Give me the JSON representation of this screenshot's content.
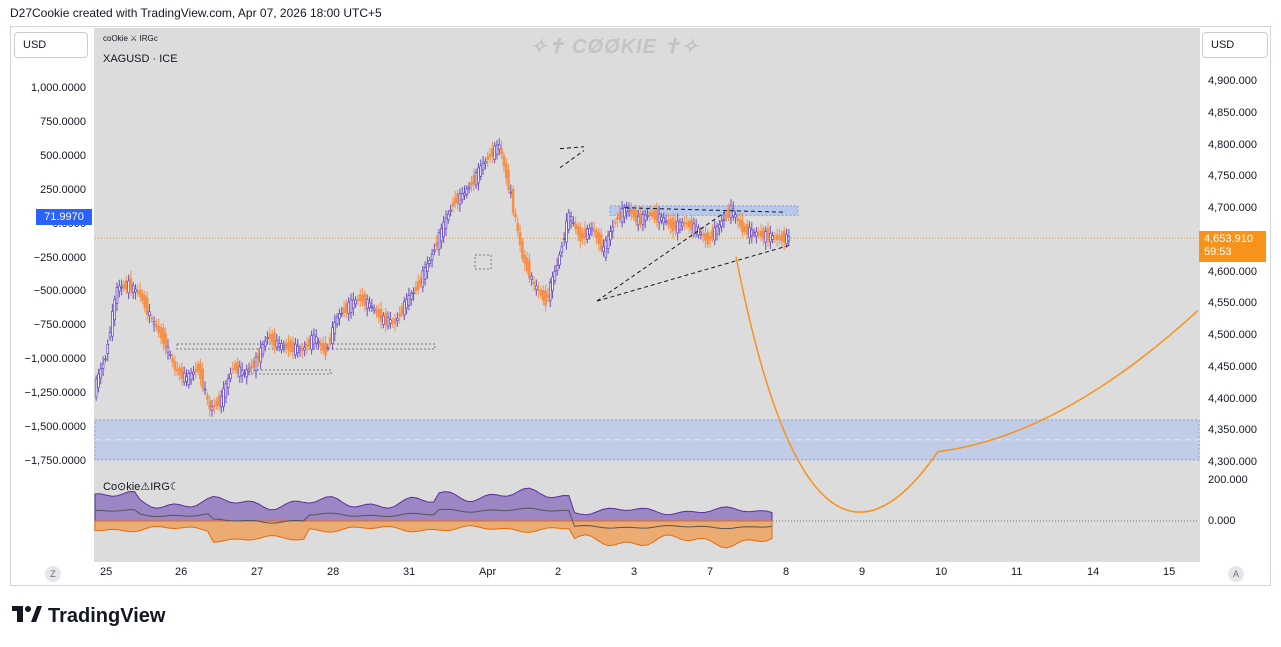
{
  "header": {
    "credit": "D27Cookie created with TradingView.com, Apr 07, 2026 18:00 UTC+5"
  },
  "controls": {
    "currency_left": "USD",
    "currency_right": "USD",
    "left_circle": "Z",
    "right_circle": "A"
  },
  "symbol": {
    "indicator_short": "coOkie ⚔ IRGc",
    "name": "XAGUSD · ICE"
  },
  "watermark": "✧✝ CØØKIE ✝✧",
  "brand": {
    "name": "TradingView"
  },
  "colors": {
    "bull": "#6d4fc4",
    "bear": "#f5914a",
    "accent": "#2962ff",
    "price_tag": "#f7931a",
    "zone": "#b8c8ea"
  },
  "chart_data": {
    "type": "line",
    "title": "XAGUSD · ICE",
    "right_axis": {
      "ticks": [
        "4,900.000",
        "4,850.000",
        "4,800.000",
        "4,750.000",
        "4,700.000",
        "4,650.000",
        "4,600.000",
        "4,550.000",
        "4,500.000",
        "4,450.000",
        "4,400.000",
        "4,350.000",
        "4,300.000"
      ],
      "ylim": [
        4290,
        4920
      ],
      "current_price": "4,653.910",
      "countdown": "59:53"
    },
    "left_axis": {
      "ticks": [
        "1,000.0000",
        "750.0000",
        "500.0000",
        "250.0000",
        "0.0000",
        "−250.0000",
        "−500.0000",
        "−750.0000",
        "−1,000.0000",
        "−1,250.0000",
        "−1,500.0000",
        "−1,750.0000"
      ],
      "ylim": [
        -1820,
        1080
      ],
      "current_value": "71.9970"
    },
    "x_axis": {
      "ticks": [
        "25",
        "26",
        "27",
        "28",
        "31",
        "Apr",
        "2",
        "3",
        "7",
        "8",
        "9",
        "10",
        "11",
        "14",
        "15"
      ]
    },
    "series": [
      {
        "x": [
          0,
          2,
          4,
          6,
          8,
          10,
          12,
          14,
          16,
          18,
          20,
          22,
          24,
          26,
          28,
          30,
          32,
          34,
          36,
          38,
          40,
          42,
          44,
          46,
          48,
          50,
          52,
          54,
          56,
          58,
          60,
          62,
          64,
          66,
          68,
          70,
          72,
          74,
          76,
          78,
          80,
          82,
          84,
          86,
          88,
          90,
          92,
          94,
          96,
          98,
          100,
          102,
          104,
          106,
          108,
          110,
          112,
          114,
          116,
          118,
          120
        ],
        "values": [
          4415,
          4468,
          4575,
          4580,
          4565,
          4525,
          4495,
          4448,
          4432,
          4450,
          4385,
          4400,
          4452,
          4440,
          4460,
          4500,
          4485,
          4482,
          4478,
          4498,
          4475,
          4530,
          4548,
          4560,
          4545,
          4525,
          4522,
          4555,
          4580,
          4620,
          4665,
          4710,
          4725,
          4752,
          4782,
          4800,
          4720,
          4625,
          4580,
          4555,
          4612,
          4690,
          4655,
          4670,
          4635,
          4682,
          4702,
          4682,
          4692,
          4685,
          4672,
          4678,
          4668,
          4650,
          4675,
          4700,
          4668,
          4662,
          4658,
          4654,
          4654
        ]
      }
    ],
    "projection": {
      "points": [
        [
          "Apr 7",
          4625
        ],
        [
          "Apr 10",
          4318
        ],
        [
          "Apr 15",
          4540
        ]
      ]
    },
    "zones": [
      {
        "y1": 4690,
        "y2": 4705
      },
      {
        "y1": 4305,
        "y2": 4368
      }
    ],
    "oscillator": {
      "ticks": [
        "200.000",
        "0.000"
      ],
      "label": "Co⊙kie⚠IRG☾"
    }
  }
}
